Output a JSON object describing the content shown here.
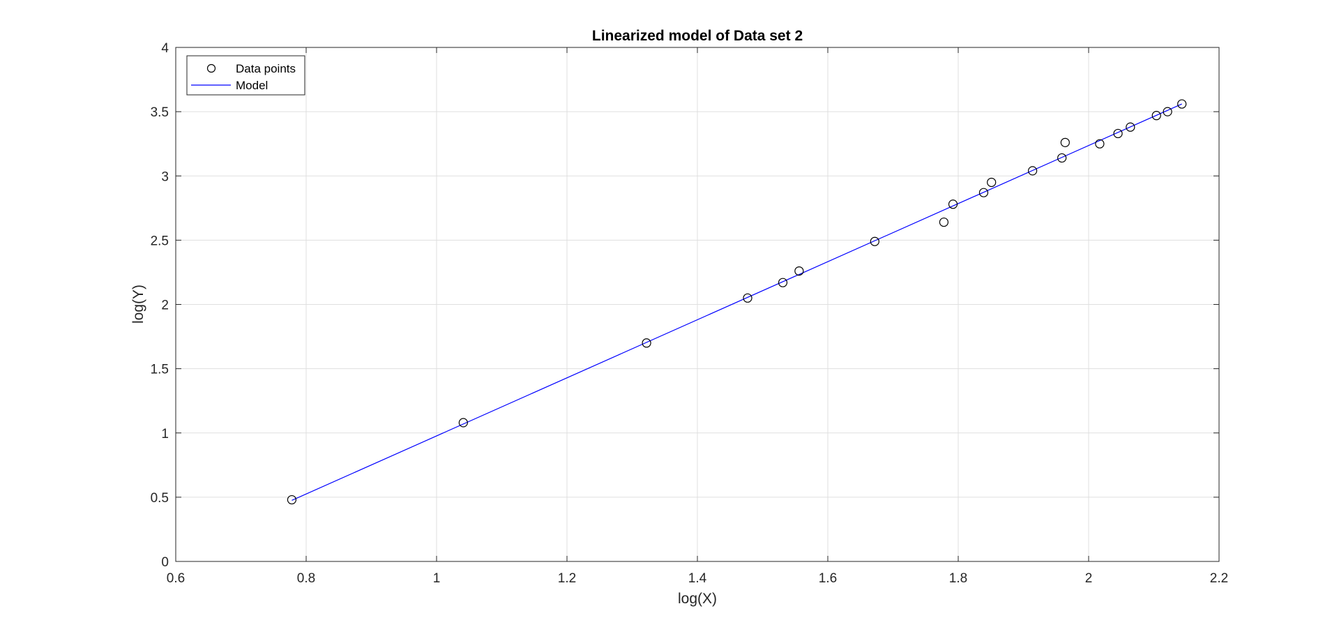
{
  "chart_data": {
    "type": "scatter",
    "title": "Linearized model of Data set 2",
    "xlabel": "log(X)",
    "ylabel": "log(Y)",
    "xlim": [
      0.6,
      2.2
    ],
    "ylim": [
      0,
      4
    ],
    "x_ticks": [
      0.6,
      0.8,
      1,
      1.2,
      1.4,
      1.6,
      1.8,
      2,
      2.2
    ],
    "x_tick_labels": [
      "0.6",
      "0.8",
      "1",
      "1.2",
      "1.4",
      "1.6",
      "1.8",
      "2",
      "2.2"
    ],
    "y_ticks": [
      0,
      0.5,
      1,
      1.5,
      2,
      2.5,
      3,
      3.5,
      4
    ],
    "y_tick_labels": [
      "0",
      "0.5",
      "1",
      "1.5",
      "2",
      "2.5",
      "3",
      "3.5",
      "4"
    ],
    "grid": true,
    "legend_position": "top-left",
    "series": [
      {
        "name": "Data points",
        "kind": "markers",
        "marker": "circle",
        "color": "#000000",
        "x": [
          0.778,
          1.041,
          1.322,
          1.477,
          1.531,
          1.556,
          1.672,
          1.778,
          1.792,
          1.839,
          1.851,
          1.914,
          1.959,
          1.964,
          2.017,
          2.045,
          2.064,
          2.104,
          2.121,
          2.143
        ],
        "y": [
          0.48,
          1.08,
          1.7,
          2.05,
          2.17,
          2.26,
          2.49,
          2.64,
          2.78,
          2.87,
          2.95,
          3.04,
          3.14,
          3.26,
          3.25,
          3.33,
          3.38,
          3.47,
          3.5,
          3.56
        ]
      },
      {
        "name": "Model",
        "kind": "line",
        "color": "#0000ff",
        "x": [
          0.778,
          2.143
        ],
        "y": [
          0.475,
          3.56
        ]
      }
    ]
  }
}
